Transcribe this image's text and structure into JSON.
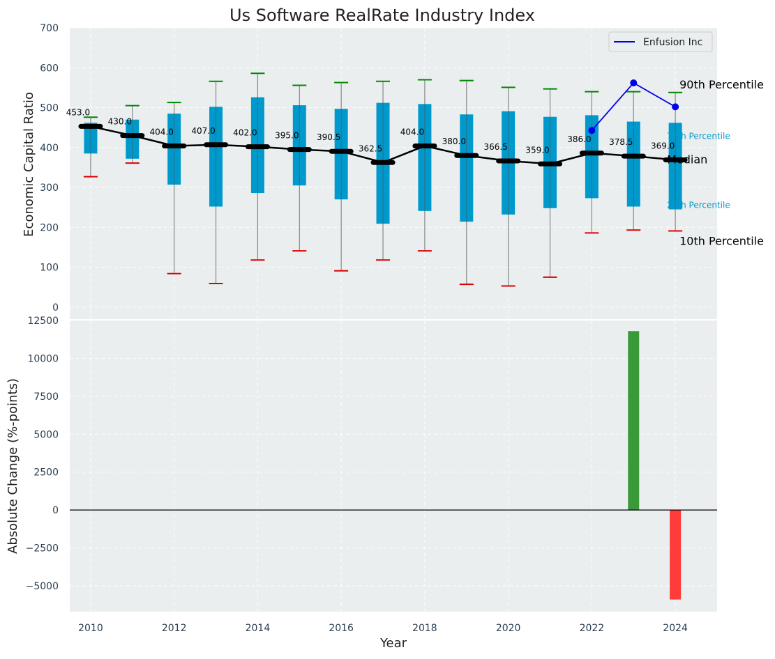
{
  "colors": {
    "panel_bg": "#eaeeef",
    "box_fill": "#0099cc",
    "whisker": "#888888",
    "p90_cap": "#008800",
    "p10_cap": "#dd0000",
    "median": "#000000",
    "company": "#0000ee",
    "pos_bar": "#3a9a3a",
    "neg_bar": "#ff3b3b",
    "p75_label": "#0099cc",
    "p25_label": "#0099cc"
  },
  "chart_data": [
    {
      "type": "box",
      "title": "Us Software RealRate Industry Index",
      "ylabel": "Economic Capital Ratio",
      "xlabel": "",
      "ylim": [
        -30,
        700
      ],
      "yticks": [
        0,
        100,
        200,
        300,
        400,
        500,
        600,
        700
      ],
      "grid": true,
      "legend": {
        "position": "top-right",
        "entries": [
          "Enfusion Inc"
        ]
      },
      "categories": [
        2010,
        2011,
        2012,
        2013,
        2014,
        2015,
        2016,
        2017,
        2018,
        2019,
        2020,
        2021,
        2022,
        2023,
        2024
      ],
      "p10": [
        327,
        361,
        84,
        59,
        118,
        141,
        91,
        118,
        141,
        57,
        53,
        75,
        186,
        193,
        191
      ],
      "p25": [
        385,
        372,
        307,
        252,
        286,
        305,
        270,
        209,
        241,
        214,
        232,
        248,
        273,
        252,
        245
      ],
      "median": [
        453.0,
        430.0,
        404.0,
        407.0,
        402.0,
        395.0,
        390.5,
        362.5,
        404.0,
        380.0,
        366.5,
        359.0,
        386.0,
        378.5,
        369.0
      ],
      "median_labels": [
        "453.0",
        "430.0",
        "404.0",
        "407.0",
        "402.0",
        "395.0",
        "390.5",
        "362.5",
        "404.0",
        "380.0",
        "366.5",
        "359.0",
        "386.0",
        "378.5",
        "369.0"
      ],
      "p75": [
        462,
        470,
        485,
        502,
        526,
        506,
        497,
        512,
        509,
        483,
        491,
        477,
        481,
        465,
        462
      ],
      "p90": [
        476,
        505,
        513,
        566,
        586,
        556,
        563,
        566,
        570,
        568,
        551,
        547,
        540,
        540,
        538
      ],
      "series": [
        {
          "name": "Enfusion Inc",
          "x": [
            2022,
            2023,
            2024
          ],
          "values": [
            443,
            562,
            502
          ]
        }
      ],
      "annotations": {
        "p90": "90th Percentile",
        "p75": "75th Percentile",
        "median": "Median",
        "p25": "25th Percentile",
        "p10": "10th Percentile"
      }
    },
    {
      "type": "bar",
      "ylabel": "Absolute Change (%-points)",
      "xlabel": "Year",
      "ylim": [
        -6700,
        12500
      ],
      "yticks": [
        -5000,
        -2500,
        0,
        2500,
        5000,
        7500,
        10000,
        12500
      ],
      "ytick_labels": [
        "−5000",
        "−2500",
        "0",
        "2500",
        "5000",
        "7500",
        "10000",
        "12500"
      ],
      "xticks": [
        2010,
        2012,
        2014,
        2016,
        2018,
        2020,
        2022,
        2024
      ],
      "xlim": [
        2009.5,
        2025
      ],
      "grid": true,
      "categories": [
        2023,
        2024
      ],
      "values": [
        11800,
        -5900
      ]
    }
  ]
}
